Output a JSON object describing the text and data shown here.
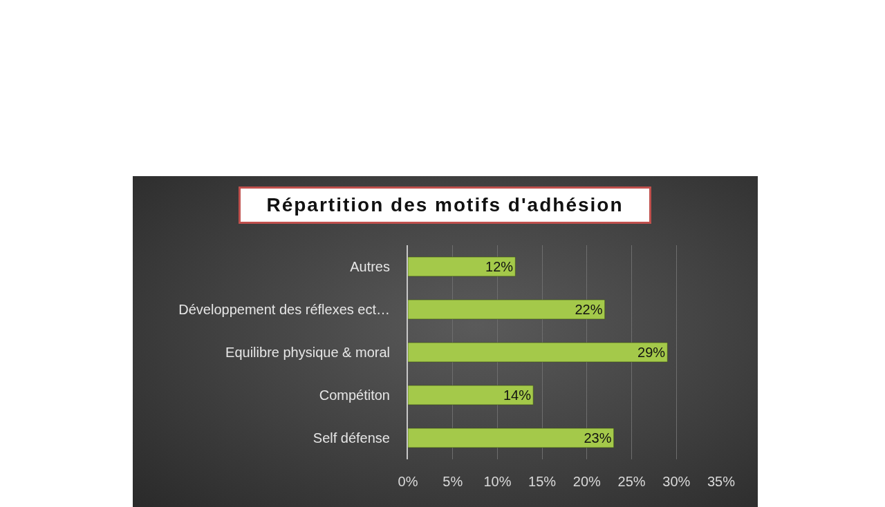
{
  "chart_data": {
    "type": "bar",
    "orientation": "horizontal",
    "title": "Répartition des motifs d'adhésion",
    "categories": [
      "Autres",
      "Développement des réflexes ect…",
      "Equilibre physique & moral",
      "Compétiton",
      "Self défense"
    ],
    "values": [
      12,
      22,
      29,
      14,
      23
    ],
    "value_labels": [
      "12%",
      "22%",
      "29%",
      "14%",
      "23%"
    ],
    "color": "#a4c94a",
    "xlim": [
      0,
      35
    ],
    "xticks": [
      {
        "value": 0,
        "label": "0%"
      },
      {
        "value": 5,
        "label": "5%"
      },
      {
        "value": 10,
        "label": "10%"
      },
      {
        "value": 15,
        "label": "15%"
      },
      {
        "value": 20,
        "label": "20%"
      },
      {
        "value": 25,
        "label": "25%"
      },
      {
        "value": 30,
        "label": "30%"
      },
      {
        "value": 35,
        "label": "35%"
      }
    ],
    "grid": "x"
  }
}
